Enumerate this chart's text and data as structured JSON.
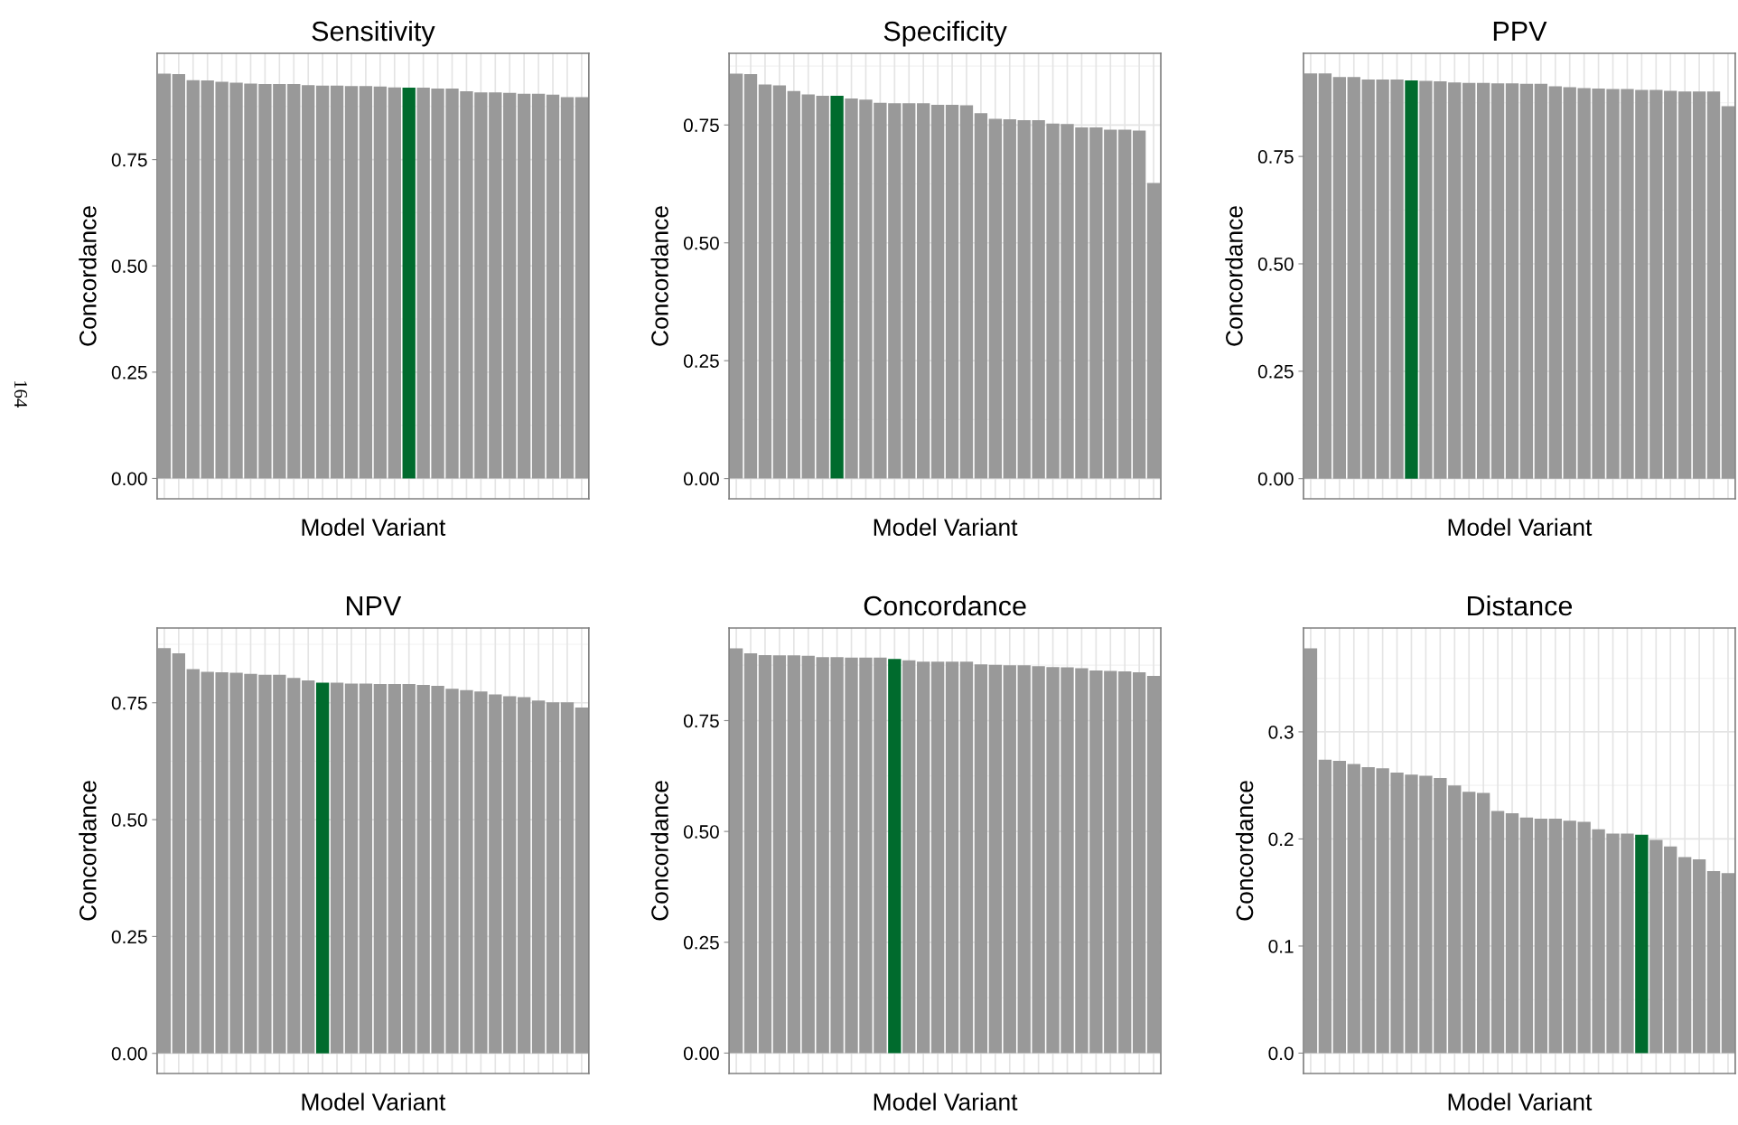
{
  "chart_data": [
    {
      "type": "bar",
      "title": "Sensitivity",
      "xlabel": "Model Variant",
      "ylabel": "Concordance",
      "tick_labels": "y",
      "grid": true,
      "annotations": [
        "164"
      ],
      "categories": [
        null,
        null,
        null,
        null,
        null,
        null,
        null,
        null,
        null,
        null,
        null,
        null,
        null,
        null,
        null,
        null,
        null,
        null,
        null,
        null,
        null,
        null,
        null,
        null,
        null,
        null,
        null,
        null,
        null,
        null
      ],
      "values": [
        0.952,
        0.951,
        0.937,
        0.936,
        0.933,
        0.931,
        0.929,
        0.928,
        0.928,
        0.928,
        0.925,
        0.924,
        0.924,
        0.923,
        0.923,
        0.922,
        0.92,
        0.919,
        0.919,
        0.917,
        0.917,
        0.911,
        0.908,
        0.908,
        0.907,
        0.905,
        0.905,
        0.903,
        0.897,
        0.897
      ],
      "colors": [
        "#999999",
        "#999999",
        "#999999",
        "#999999",
        "#999999",
        "#999999",
        "#999999",
        "#999999",
        "#999999",
        "#999999",
        "#999999",
        "#999999",
        "#999999",
        "#999999",
        "#999999",
        "#999999",
        "#999999",
        "#006b2d",
        "#999999",
        "#999999",
        "#999999",
        "#999999",
        "#999999",
        "#999999",
        "#999999",
        "#999999",
        "#999999",
        "#999999",
        "#999999",
        "#999999"
      ],
      "ylim": [
        -0.048,
        1.0
      ],
      "yticks": [
        {
          "value": 0,
          "label": "0.00"
        },
        {
          "value": 0.25,
          "label": "0.25"
        },
        {
          "value": 0.5,
          "label": "0.50"
        },
        {
          "value": 0.75,
          "label": "0.75"
        }
      ]
    },
    {
      "type": "bar",
      "title": "Specificity",
      "xlabel": "Model Variant",
      "ylabel": "Concordance",
      "tick_labels": "y",
      "grid": true,
      "categories": [
        null,
        null,
        null,
        null,
        null,
        null,
        null,
        null,
        null,
        null,
        null,
        null,
        null,
        null,
        null,
        null,
        null,
        null,
        null,
        null,
        null,
        null,
        null,
        null,
        null,
        null,
        null,
        null,
        null,
        null
      ],
      "values": [
        0.859,
        0.858,
        0.836,
        0.834,
        0.822,
        0.815,
        0.812,
        0.812,
        0.806,
        0.804,
        0.797,
        0.796,
        0.796,
        0.796,
        0.793,
        0.793,
        0.792,
        0.775,
        0.763,
        0.762,
        0.76,
        0.76,
        0.753,
        0.752,
        0.745,
        0.745,
        0.74,
        0.74,
        0.738,
        0.627
      ],
      "colors": [
        "#999999",
        "#999999",
        "#999999",
        "#999999",
        "#999999",
        "#999999",
        "#999999",
        "#006b2d",
        "#999999",
        "#999999",
        "#999999",
        "#999999",
        "#999999",
        "#999999",
        "#999999",
        "#999999",
        "#999999",
        "#999999",
        "#999999",
        "#999999",
        "#999999",
        "#999999",
        "#999999",
        "#999999",
        "#999999",
        "#999999",
        "#999999",
        "#999999",
        "#999999",
        "#999999"
      ],
      "ylim": [
        -0.043,
        0.902
      ],
      "yticks": [
        {
          "value": 0,
          "label": "0.00"
        },
        {
          "value": 0.25,
          "label": "0.25"
        },
        {
          "value": 0.5,
          "label": "0.50"
        },
        {
          "value": 0.75,
          "label": "0.75"
        }
      ]
    },
    {
      "type": "bar",
      "title": "PPV",
      "xlabel": "Model Variant",
      "ylabel": "Concordance",
      "tick_labels": "y",
      "grid": true,
      "categories": [
        null,
        null,
        null,
        null,
        null,
        null,
        null,
        null,
        null,
        null,
        null,
        null,
        null,
        null,
        null,
        null,
        null,
        null,
        null,
        null,
        null,
        null,
        null,
        null,
        null,
        null,
        null,
        null,
        null,
        null
      ],
      "values": [
        0.943,
        0.943,
        0.935,
        0.935,
        0.929,
        0.929,
        0.929,
        0.927,
        0.926,
        0.925,
        0.922,
        0.921,
        0.921,
        0.92,
        0.92,
        0.919,
        0.919,
        0.913,
        0.911,
        0.909,
        0.908,
        0.907,
        0.907,
        0.905,
        0.905,
        0.903,
        0.901,
        0.901,
        0.901,
        0.867
      ],
      "colors": [
        "#999999",
        "#999999",
        "#999999",
        "#999999",
        "#999999",
        "#999999",
        "#999999",
        "#006b2d",
        "#999999",
        "#999999",
        "#999999",
        "#999999",
        "#999999",
        "#999999",
        "#999999",
        "#999999",
        "#999999",
        "#999999",
        "#999999",
        "#999999",
        "#999999",
        "#999999",
        "#999999",
        "#999999",
        "#999999",
        "#999999",
        "#999999",
        "#999999",
        "#999999",
        "#999999"
      ],
      "ylim": [
        -0.047,
        0.99
      ],
      "yticks": [
        {
          "value": 0,
          "label": "0.00"
        },
        {
          "value": 0.25,
          "label": "0.25"
        },
        {
          "value": 0.5,
          "label": "0.50"
        },
        {
          "value": 0.75,
          "label": "0.75"
        }
      ]
    },
    {
      "type": "bar",
      "title": "NPV",
      "xlabel": "Model Variant",
      "ylabel": "Concordance",
      "tick_labels": "y",
      "grid": true,
      "categories": [
        null,
        null,
        null,
        null,
        null,
        null,
        null,
        null,
        null,
        null,
        null,
        null,
        null,
        null,
        null,
        null,
        null,
        null,
        null,
        null,
        null,
        null,
        null,
        null,
        null,
        null,
        null,
        null,
        null,
        null
      ],
      "values": [
        0.867,
        0.856,
        0.822,
        0.816,
        0.815,
        0.814,
        0.812,
        0.81,
        0.81,
        0.803,
        0.798,
        0.793,
        0.793,
        0.791,
        0.791,
        0.79,
        0.79,
        0.79,
        0.788,
        0.786,
        0.78,
        0.777,
        0.774,
        0.768,
        0.764,
        0.762,
        0.755,
        0.751,
        0.751,
        0.74
      ],
      "colors": [
        "#999999",
        "#999999",
        "#999999",
        "#999999",
        "#999999",
        "#999999",
        "#999999",
        "#999999",
        "#999999",
        "#999999",
        "#999999",
        "#006b2d",
        "#999999",
        "#999999",
        "#999999",
        "#999999",
        "#999999",
        "#999999",
        "#999999",
        "#999999",
        "#999999",
        "#999999",
        "#999999",
        "#999999",
        "#999999",
        "#999999",
        "#999999",
        "#999999",
        "#999999",
        "#999999"
      ],
      "ylim": [
        -0.043,
        0.91
      ],
      "yticks": [
        {
          "value": 0,
          "label": "0.00"
        },
        {
          "value": 0.25,
          "label": "0.25"
        },
        {
          "value": 0.5,
          "label": "0.50"
        },
        {
          "value": 0.75,
          "label": "0.75"
        }
      ]
    },
    {
      "type": "bar",
      "title": "Concordance",
      "xlabel": "Model Variant",
      "ylabel": "Concordance",
      "tick_labels": "y",
      "grid": true,
      "categories": [
        null,
        null,
        null,
        null,
        null,
        null,
        null,
        null,
        null,
        null,
        null,
        null,
        null,
        null,
        null,
        null,
        null,
        null,
        null,
        null,
        null,
        null,
        null,
        null,
        null,
        null,
        null,
        null,
        null,
        null
      ],
      "values": [
        0.913,
        0.902,
        0.898,
        0.897,
        0.897,
        0.896,
        0.893,
        0.893,
        0.892,
        0.892,
        0.892,
        0.889,
        0.886,
        0.883,
        0.883,
        0.883,
        0.883,
        0.877,
        0.876,
        0.875,
        0.875,
        0.873,
        0.871,
        0.87,
        0.868,
        0.863,
        0.862,
        0.861,
        0.859,
        0.851
      ],
      "colors": [
        "#999999",
        "#999999",
        "#999999",
        "#999999",
        "#999999",
        "#999999",
        "#999999",
        "#999999",
        "#999999",
        "#999999",
        "#999999",
        "#006b2d",
        "#999999",
        "#999999",
        "#999999",
        "#999999",
        "#999999",
        "#999999",
        "#999999",
        "#999999",
        "#999999",
        "#999999",
        "#999999",
        "#999999",
        "#999999",
        "#999999",
        "#999999",
        "#999999",
        "#999999",
        "#999999"
      ],
      "ylim": [
        -0.046,
        0.959
      ],
      "yticks": [
        {
          "value": 0,
          "label": "0.00"
        },
        {
          "value": 0.25,
          "label": "0.25"
        },
        {
          "value": 0.5,
          "label": "0.50"
        },
        {
          "value": 0.75,
          "label": "0.75"
        }
      ]
    },
    {
      "type": "bar",
      "title": "Distance",
      "xlabel": "Model Variant",
      "ylabel": "Concordance",
      "tick_labels": "y",
      "grid": true,
      "categories": [
        null,
        null,
        null,
        null,
        null,
        null,
        null,
        null,
        null,
        null,
        null,
        null,
        null,
        null,
        null,
        null,
        null,
        null,
        null,
        null,
        null,
        null,
        null,
        null,
        null,
        null,
        null,
        null,
        null,
        null
      ],
      "values": [
        0.378,
        0.274,
        0.273,
        0.27,
        0.267,
        0.266,
        0.262,
        0.26,
        0.259,
        0.257,
        0.25,
        0.244,
        0.243,
        0.226,
        0.224,
        0.22,
        0.219,
        0.219,
        0.217,
        0.216,
        0.209,
        0.205,
        0.205,
        0.204,
        0.199,
        0.193,
        0.183,
        0.181,
        0.17,
        0.168
      ],
      "colors": [
        "#999999",
        "#999999",
        "#999999",
        "#999999",
        "#999999",
        "#999999",
        "#999999",
        "#999999",
        "#999999",
        "#999999",
        "#999999",
        "#999999",
        "#999999",
        "#999999",
        "#999999",
        "#999999",
        "#999999",
        "#999999",
        "#999999",
        "#999999",
        "#999999",
        "#999999",
        "#999999",
        "#006b2d",
        "#999999",
        "#999999",
        "#999999",
        "#999999",
        "#999999",
        "#999999"
      ],
      "ylim": [
        -0.019,
        0.397
      ],
      "yticks": [
        {
          "value": 0,
          "label": "0.0"
        },
        {
          "value": 0.1,
          "label": "0.1"
        },
        {
          "value": 0.2,
          "label": "0.2"
        },
        {
          "value": 0.3,
          "label": "0.3"
        }
      ]
    }
  ]
}
